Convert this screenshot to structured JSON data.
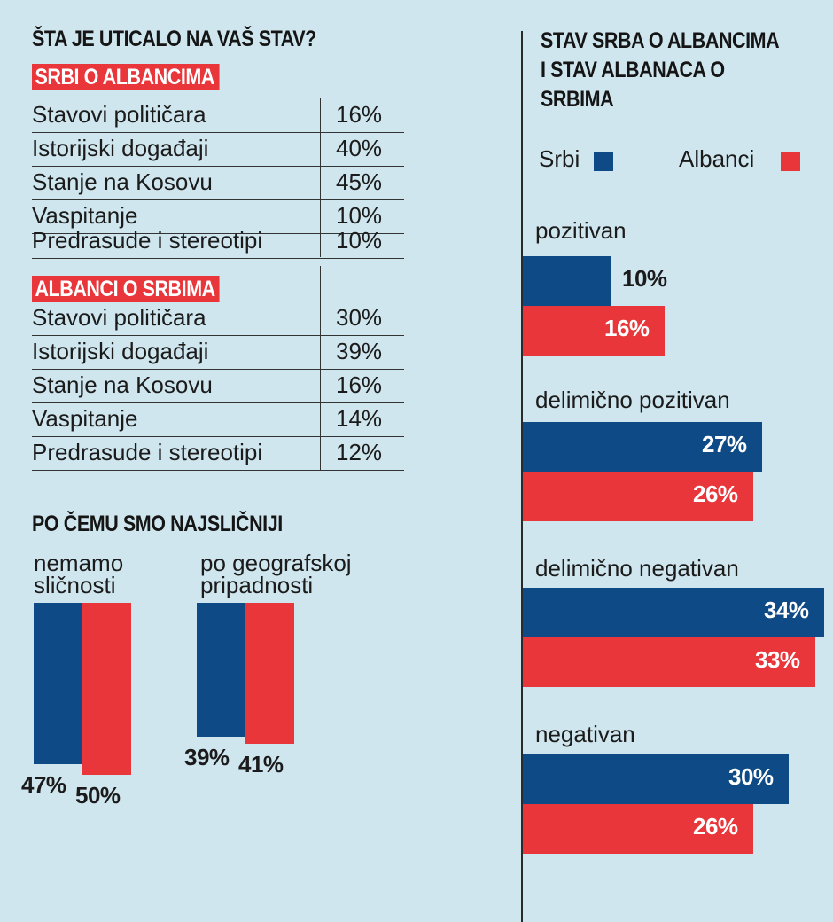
{
  "left_title": "ŠTA JE UTICALO NA VAŠ STAV?",
  "tables": [
    {
      "label": "SRBI O ALBANCIMA",
      "rows": [
        {
          "label": "Stavovi političara",
          "value": "16%"
        },
        {
          "label": "Istorijski događaji",
          "value": "40%"
        },
        {
          "label": "Stanje na Kosovu",
          "value": "45%"
        },
        {
          "label": "Vaspitanje",
          "value": "10%"
        },
        {
          "label": "Predrasude i stereotipi",
          "value": "10%"
        }
      ]
    },
    {
      "label": "ALBANCI O SRBIMA",
      "rows": [
        {
          "label": "Stavovi političara",
          "value": "30%"
        },
        {
          "label": "Istorijski događaji",
          "value": "39%"
        },
        {
          "label": "Stanje na Kosovu",
          "value": "16%"
        },
        {
          "label": "Vaspitanje",
          "value": "14%"
        },
        {
          "label": "Predrasude i stereotipi",
          "value": "12%"
        }
      ]
    }
  ],
  "similarity_title": "PO ČEMU SMO NAJSLIČNIJI",
  "right_title": "STAV SRBA O ALBANCIMA I STAV ALBANACA O SRBIMA",
  "legend": {
    "srbi": "Srbi",
    "albanci": "Albanci"
  },
  "colors": {
    "srbi": "#0e4a85",
    "albanci": "#e8363a",
    "background": "#cfe6ee"
  },
  "chart_data": [
    {
      "type": "bar",
      "title": "PO ČEMU SMO NAJSLIČNIJI",
      "categories": [
        [
          "nemamo",
          "sličnosti"
        ],
        [
          "po geografskoj",
          "pripadnosti"
        ]
      ],
      "series": [
        {
          "name": "Srbi",
          "values": [
            47,
            39
          ]
        },
        {
          "name": "Albanci",
          "values": [
            50,
            41
          ]
        }
      ],
      "value_labels": [
        [
          "47%",
          "50%"
        ],
        [
          "39%",
          "41%"
        ]
      ]
    },
    {
      "type": "bar",
      "orientation": "horizontal",
      "title": "STAV SRBA O ALBANCIMA I STAV ALBANACA O SRBIMA",
      "categories": [
        "pozitivan",
        "delimično pozitivan",
        "delimično negativan",
        "negativan"
      ],
      "series": [
        {
          "name": "Srbi",
          "values": [
            10,
            27,
            34,
            30
          ]
        },
        {
          "name": "Albanci",
          "values": [
            16,
            26,
            33,
            26
          ]
        }
      ],
      "value_labels": [
        [
          "10%",
          "16%"
        ],
        [
          "27%",
          "26%"
        ],
        [
          "34%",
          "33%"
        ],
        [
          "30%",
          "26%"
        ]
      ]
    }
  ]
}
